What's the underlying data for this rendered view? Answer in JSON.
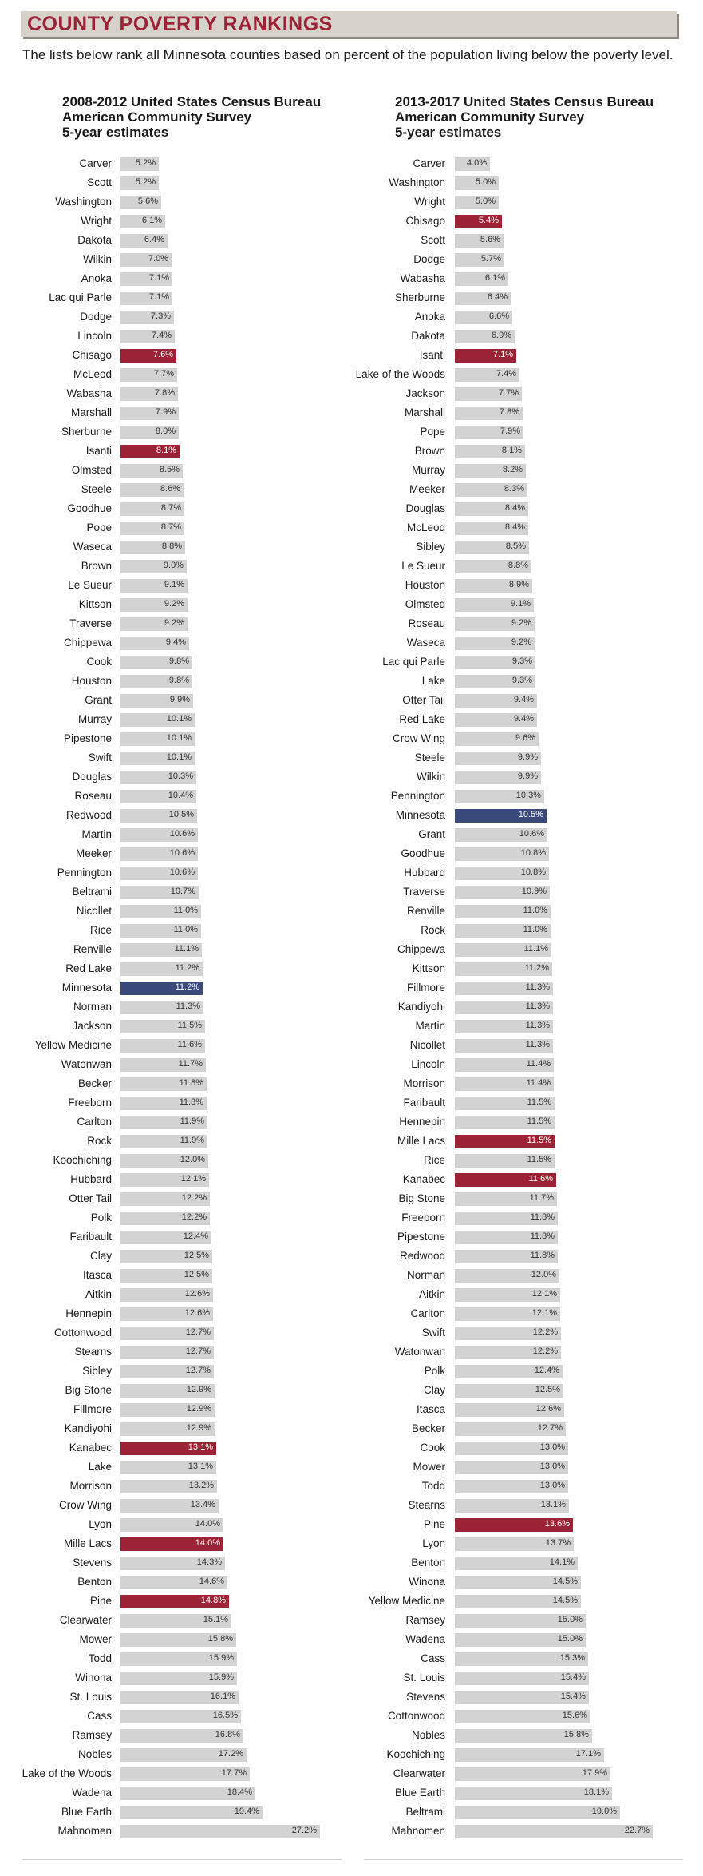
{
  "banner": {
    "title": "COUNTY POVERTY RANKINGS"
  },
  "subtitle": "The lists below rank all Minnesota counties based on percent of the population living below the poverty level.",
  "colors": {
    "bar": "#d3d3d3",
    "highlight_red": "#9b2335",
    "highlight_blue": "#3a4a7a",
    "title_red": "#9b2335"
  },
  "chart_data": [
    {
      "type": "bar",
      "title_lines": [
        "2008-2012 United States Census Bureau",
        "American Community Survey",
        "5-year estimates"
      ],
      "unit": "%",
      "highlighted": [
        "Chisago",
        "Isanti",
        "Kanabec",
        "Mille Lacs",
        "Pine"
      ],
      "state_row": "Minnesota",
      "rows": [
        {
          "label": "Carver",
          "value": 5.2,
          "text": "5.2%"
        },
        {
          "label": "Scott",
          "value": 5.2,
          "text": "5.2%"
        },
        {
          "label": "Washington",
          "value": 5.6,
          "text": "5.6%"
        },
        {
          "label": "Wright",
          "value": 6.1,
          "text": "6.1%"
        },
        {
          "label": "Dakota",
          "value": 6.4,
          "text": "6.4%"
        },
        {
          "label": "Wilkin",
          "value": 7.0,
          "text": "7.0%"
        },
        {
          "label": "Anoka",
          "value": 7.1,
          "text": "7.1%"
        },
        {
          "label": "Lac qui Parle",
          "value": 7.1,
          "text": "7.1%"
        },
        {
          "label": "Dodge",
          "value": 7.3,
          "text": "7.3%"
        },
        {
          "label": "Lincoln",
          "value": 7.4,
          "text": "7.4%"
        },
        {
          "label": "Chisago",
          "value": 7.6,
          "text": "7.6%"
        },
        {
          "label": "McLeod",
          "value": 7.7,
          "text": "7.7%"
        },
        {
          "label": "Wabasha",
          "value": 7.8,
          "text": "7.8%"
        },
        {
          "label": "Marshall",
          "value": 7.9,
          "text": "7.9%"
        },
        {
          "label": "Sherburne",
          "value": 8.0,
          "text": "8.0%"
        },
        {
          "label": "Isanti",
          "value": 8.1,
          "text": "8.1%"
        },
        {
          "label": "Olmsted",
          "value": 8.5,
          "text": "8.5%"
        },
        {
          "label": "Steele",
          "value": 8.6,
          "text": "8.6%"
        },
        {
          "label": "Goodhue",
          "value": 8.7,
          "text": "8.7%"
        },
        {
          "label": "Pope",
          "value": 8.7,
          "text": "8.7%"
        },
        {
          "label": "Waseca",
          "value": 8.8,
          "text": "8.8%"
        },
        {
          "label": "Brown",
          "value": 9.0,
          "text": "9.0%"
        },
        {
          "label": "Le Sueur",
          "value": 9.1,
          "text": "9.1%"
        },
        {
          "label": "Kittson",
          "value": 9.2,
          "text": "9.2%"
        },
        {
          "label": "Traverse",
          "value": 9.2,
          "text": "9.2%"
        },
        {
          "label": "Chippewa",
          "value": 9.4,
          "text": "9.4%"
        },
        {
          "label": "Cook",
          "value": 9.8,
          "text": "9.8%"
        },
        {
          "label": "Houston",
          "value": 9.8,
          "text": "9.8%"
        },
        {
          "label": "Grant",
          "value": 9.9,
          "text": "9.9%"
        },
        {
          "label": "Murray",
          "value": 10.1,
          "text": "10.1%"
        },
        {
          "label": "Pipestone",
          "value": 10.1,
          "text": "10.1%"
        },
        {
          "label": "Swift",
          "value": 10.1,
          "text": "10.1%"
        },
        {
          "label": "Douglas",
          "value": 10.3,
          "text": "10.3%"
        },
        {
          "label": "Roseau",
          "value": 10.4,
          "text": "10.4%"
        },
        {
          "label": "Redwood",
          "value": 10.5,
          "text": "10.5%"
        },
        {
          "label": "Martin",
          "value": 10.6,
          "text": "10.6%"
        },
        {
          "label": "Meeker",
          "value": 10.6,
          "text": "10.6%"
        },
        {
          "label": "Pennington",
          "value": 10.6,
          "text": "10.6%"
        },
        {
          "label": "Beltrami",
          "value": 10.7,
          "text": "10.7%"
        },
        {
          "label": "Nicollet",
          "value": 11.0,
          "text": "11.0%"
        },
        {
          "label": "Rice",
          "value": 11.0,
          "text": "11.0%"
        },
        {
          "label": "Renville",
          "value": 11.1,
          "text": "11.1%"
        },
        {
          "label": "Red Lake",
          "value": 11.2,
          "text": "11.2%"
        },
        {
          "label": "Minnesota",
          "value": 11.2,
          "text": "11.2%"
        },
        {
          "label": "Norman",
          "value": 11.3,
          "text": "11.3%"
        },
        {
          "label": "Jackson",
          "value": 11.5,
          "text": "11.5%"
        },
        {
          "label": "Yellow Medicine",
          "value": 11.6,
          "text": "11.6%"
        },
        {
          "label": "Watonwan",
          "value": 11.7,
          "text": "11.7%"
        },
        {
          "label": "Becker",
          "value": 11.8,
          "text": "11.8%"
        },
        {
          "label": "Freeborn",
          "value": 11.8,
          "text": "11.8%"
        },
        {
          "label": "Carlton",
          "value": 11.9,
          "text": "11.9%"
        },
        {
          "label": "Rock",
          "value": 11.9,
          "text": "11.9%"
        },
        {
          "label": "Koochiching",
          "value": 12.0,
          "text": "12.0%"
        },
        {
          "label": "Hubbard",
          "value": 12.1,
          "text": "12.1%"
        },
        {
          "label": "Otter Tail",
          "value": 12.2,
          "text": "12.2%"
        },
        {
          "label": "Polk",
          "value": 12.2,
          "text": "12.2%"
        },
        {
          "label": "Faribault",
          "value": 12.4,
          "text": "12.4%"
        },
        {
          "label": "Clay",
          "value": 12.5,
          "text": "12.5%"
        },
        {
          "label": "Itasca",
          "value": 12.5,
          "text": "12.5%"
        },
        {
          "label": "Aitkin",
          "value": 12.6,
          "text": "12.6%"
        },
        {
          "label": "Hennepin",
          "value": 12.6,
          "text": "12.6%"
        },
        {
          "label": "Cottonwood",
          "value": 12.7,
          "text": "12.7%"
        },
        {
          "label": "Stearns",
          "value": 12.7,
          "text": "12.7%"
        },
        {
          "label": "Sibley",
          "value": 12.7,
          "text": "12.7%"
        },
        {
          "label": "Big Stone",
          "value": 12.9,
          "text": "12.9%"
        },
        {
          "label": "Fillmore",
          "value": 12.9,
          "text": "12.9%"
        },
        {
          "label": "Kandiyohi",
          "value": 12.9,
          "text": "12.9%"
        },
        {
          "label": "Kanabec",
          "value": 13.1,
          "text": "13.1%"
        },
        {
          "label": "Lake",
          "value": 13.1,
          "text": "13.1%"
        },
        {
          "label": "Morrison",
          "value": 13.2,
          "text": "13.2%"
        },
        {
          "label": "Crow Wing",
          "value": 13.4,
          "text": "13.4%"
        },
        {
          "label": "Lyon",
          "value": 14.0,
          "text": "14.0%"
        },
        {
          "label": "Mille Lacs",
          "value": 14.0,
          "text": "14.0%"
        },
        {
          "label": "Stevens",
          "value": 14.3,
          "text": "14.3%"
        },
        {
          "label": "Benton",
          "value": 14.6,
          "text": "14.6%"
        },
        {
          "label": "Pine",
          "value": 14.8,
          "text": "14.8%"
        },
        {
          "label": "Clearwater",
          "value": 15.1,
          "text": "15.1%"
        },
        {
          "label": "Mower",
          "value": 15.8,
          "text": "15.8%"
        },
        {
          "label": "Todd",
          "value": 15.9,
          "text": "15.9%"
        },
        {
          "label": "Winona",
          "value": 15.9,
          "text": "15.9%"
        },
        {
          "label": "St. Louis",
          "value": 16.1,
          "text": "16.1%"
        },
        {
          "label": "Cass",
          "value": 16.5,
          "text": "16.5%"
        },
        {
          "label": "Ramsey",
          "value": 16.8,
          "text": "16.8%"
        },
        {
          "label": "Nobles",
          "value": 17.2,
          "text": "17.2%"
        },
        {
          "label": "Lake of the Woods",
          "value": 17.7,
          "text": "17.7%"
        },
        {
          "label": "Wadena",
          "value": 18.4,
          "text": "18.4%"
        },
        {
          "label": "Blue Earth",
          "value": 19.4,
          "text": "19.4%"
        },
        {
          "label": "Mahnomen",
          "value": 27.2,
          "text": "27.2%"
        }
      ]
    },
    {
      "type": "bar",
      "title_lines": [
        "2013-2017 United States Census Bureau",
        "American Community Survey",
        "5-year estimates"
      ],
      "unit": "%",
      "highlighted": [
        "Chisago",
        "Isanti",
        "Mille Lacs",
        "Kanabec",
        "Pine"
      ],
      "state_row": "Minnesota",
      "rows": [
        {
          "label": "Carver",
          "value": 4.0,
          "text": "4.0%"
        },
        {
          "label": "Washington",
          "value": 5.0,
          "text": "5.0%"
        },
        {
          "label": "Wright",
          "value": 5.0,
          "text": "5.0%"
        },
        {
          "label": "Chisago",
          "value": 5.4,
          "text": "5.4%"
        },
        {
          "label": "Scott",
          "value": 5.6,
          "text": "5.6%"
        },
        {
          "label": "Dodge",
          "value": 5.7,
          "text": "5.7%"
        },
        {
          "label": "Wabasha",
          "value": 6.1,
          "text": "6.1%"
        },
        {
          "label": "Sherburne",
          "value": 6.4,
          "text": "6.4%"
        },
        {
          "label": "Anoka",
          "value": 6.6,
          "text": "6.6%"
        },
        {
          "label": "Dakota",
          "value": 6.9,
          "text": "6.9%"
        },
        {
          "label": "Isanti",
          "value": 7.1,
          "text": "7.1%"
        },
        {
          "label": "Lake of the Woods",
          "value": 7.4,
          "text": "7.4%"
        },
        {
          "label": "Jackson",
          "value": 7.7,
          "text": "7.7%"
        },
        {
          "label": "Marshall",
          "value": 7.8,
          "text": "7.8%"
        },
        {
          "label": "Pope",
          "value": 7.9,
          "text": "7.9%"
        },
        {
          "label": "Brown",
          "value": 8.1,
          "text": "8.1%"
        },
        {
          "label": "Murray",
          "value": 8.2,
          "text": "8.2%"
        },
        {
          "label": "Meeker",
          "value": 8.3,
          "text": "8.3%"
        },
        {
          "label": "Douglas",
          "value": 8.4,
          "text": "8.4%"
        },
        {
          "label": "McLeod",
          "value": 8.4,
          "text": "8.4%"
        },
        {
          "label": "Sibley",
          "value": 8.5,
          "text": "8.5%"
        },
        {
          "label": "Le Sueur",
          "value": 8.8,
          "text": "8.8%"
        },
        {
          "label": "Houston",
          "value": 8.9,
          "text": "8.9%"
        },
        {
          "label": "Olmsted",
          "value": 9.1,
          "text": "9.1%"
        },
        {
          "label": "Roseau",
          "value": 9.2,
          "text": "9.2%"
        },
        {
          "label": "Waseca",
          "value": 9.2,
          "text": "9.2%"
        },
        {
          "label": "Lac qui Parle",
          "value": 9.3,
          "text": "9.3%"
        },
        {
          "label": "Lake",
          "value": 9.3,
          "text": "9.3%"
        },
        {
          "label": "Otter Tail",
          "value": 9.4,
          "text": "9.4%"
        },
        {
          "label": "Red Lake",
          "value": 9.4,
          "text": "9.4%"
        },
        {
          "label": "Crow Wing",
          "value": 9.6,
          "text": "9.6%"
        },
        {
          "label": "Steele",
          "value": 9.9,
          "text": "9.9%"
        },
        {
          "label": "Wilkin",
          "value": 9.9,
          "text": "9.9%"
        },
        {
          "label": "Pennington",
          "value": 10.3,
          "text": "10.3%"
        },
        {
          "label": "Minnesota",
          "value": 10.5,
          "text": "10.5%"
        },
        {
          "label": "Grant",
          "value": 10.6,
          "text": "10.6%"
        },
        {
          "label": "Goodhue",
          "value": 10.8,
          "text": "10.8%"
        },
        {
          "label": "Hubbard",
          "value": 10.8,
          "text": "10.8%"
        },
        {
          "label": "Traverse",
          "value": 10.9,
          "text": "10.9%"
        },
        {
          "label": "Renville",
          "value": 11.0,
          "text": "11.0%"
        },
        {
          "label": "Rock",
          "value": 11.0,
          "text": "11.0%"
        },
        {
          "label": "Chippewa",
          "value": 11.1,
          "text": "11.1%"
        },
        {
          "label": "Kittson",
          "value": 11.2,
          "text": "11.2%"
        },
        {
          "label": "Fillmore",
          "value": 11.3,
          "text": "11.3%"
        },
        {
          "label": "Kandiyohi",
          "value": 11.3,
          "text": "11.3%"
        },
        {
          "label": "Martin",
          "value": 11.3,
          "text": "11.3%"
        },
        {
          "label": "Nicollet",
          "value": 11.3,
          "text": "11.3%"
        },
        {
          "label": "Lincoln",
          "value": 11.4,
          "text": "11.4%"
        },
        {
          "label": "Morrison",
          "value": 11.4,
          "text": "11.4%"
        },
        {
          "label": "Faribault",
          "value": 11.5,
          "text": "11.5%"
        },
        {
          "label": "Hennepin",
          "value": 11.5,
          "text": "11.5%"
        },
        {
          "label": "Mille Lacs",
          "value": 11.5,
          "text": "11.5%"
        },
        {
          "label": "Rice",
          "value": 11.5,
          "text": "11.5%"
        },
        {
          "label": "Kanabec",
          "value": 11.6,
          "text": "11.6%"
        },
        {
          "label": "Big Stone",
          "value": 11.7,
          "text": "11.7%"
        },
        {
          "label": "Freeborn",
          "value": 11.8,
          "text": "11.8%"
        },
        {
          "label": "Pipestone",
          "value": 11.8,
          "text": "11.8%"
        },
        {
          "label": "Redwood",
          "value": 11.8,
          "text": "11.8%"
        },
        {
          "label": "Norman",
          "value": 12.0,
          "text": "12.0%"
        },
        {
          "label": "Aitkin",
          "value": 12.1,
          "text": "12.1%"
        },
        {
          "label": "Carlton",
          "value": 12.1,
          "text": "12.1%"
        },
        {
          "label": "Swift",
          "value": 12.2,
          "text": "12.2%"
        },
        {
          "label": "Watonwan",
          "value": 12.2,
          "text": "12.2%"
        },
        {
          "label": "Polk",
          "value": 12.4,
          "text": "12.4%"
        },
        {
          "label": "Clay",
          "value": 12.5,
          "text": "12.5%"
        },
        {
          "label": "Itasca",
          "value": 12.6,
          "text": "12.6%"
        },
        {
          "label": "Becker",
          "value": 12.7,
          "text": "12.7%"
        },
        {
          "label": "Cook",
          "value": 13.0,
          "text": "13.0%"
        },
        {
          "label": "Mower",
          "value": 13.0,
          "text": "13.0%"
        },
        {
          "label": "Todd",
          "value": 13.0,
          "text": "13.0%"
        },
        {
          "label": "Stearns",
          "value": 13.1,
          "text": "13.1%"
        },
        {
          "label": "Pine",
          "value": 13.6,
          "text": "13.6%"
        },
        {
          "label": "Lyon",
          "value": 13.7,
          "text": "13.7%"
        },
        {
          "label": "Benton",
          "value": 14.1,
          "text": "14.1%"
        },
        {
          "label": "Winona",
          "value": 14.5,
          "text": "14.5%"
        },
        {
          "label": "Yellow Medicine",
          "value": 14.5,
          "text": "14.5%"
        },
        {
          "label": "Ramsey",
          "value": 15.0,
          "text": "15.0%"
        },
        {
          "label": "Wadena",
          "value": 15.0,
          "text": "15.0%"
        },
        {
          "label": "Cass",
          "value": 15.3,
          "text": "15.3%"
        },
        {
          "label": "St. Louis",
          "value": 15.4,
          "text": "15.4%"
        },
        {
          "label": "Stevens",
          "value": 15.4,
          "text": "15.4%"
        },
        {
          "label": "Cottonwood",
          "value": 15.6,
          "text": "15.6%"
        },
        {
          "label": "Nobles",
          "value": 15.8,
          "text": "15.8%"
        },
        {
          "label": "Koochiching",
          "value": 17.1,
          "text": "17.1%"
        },
        {
          "label": "Clearwater",
          "value": 17.9,
          "text": "17.9%"
        },
        {
          "label": "Blue Earth",
          "value": 18.1,
          "text": "18.1%"
        },
        {
          "label": "Beltrami",
          "value": 19.0,
          "text": "19.0%"
        },
        {
          "label": "Mahnomen",
          "value": 22.7,
          "text": "22.7%"
        }
      ]
    }
  ]
}
